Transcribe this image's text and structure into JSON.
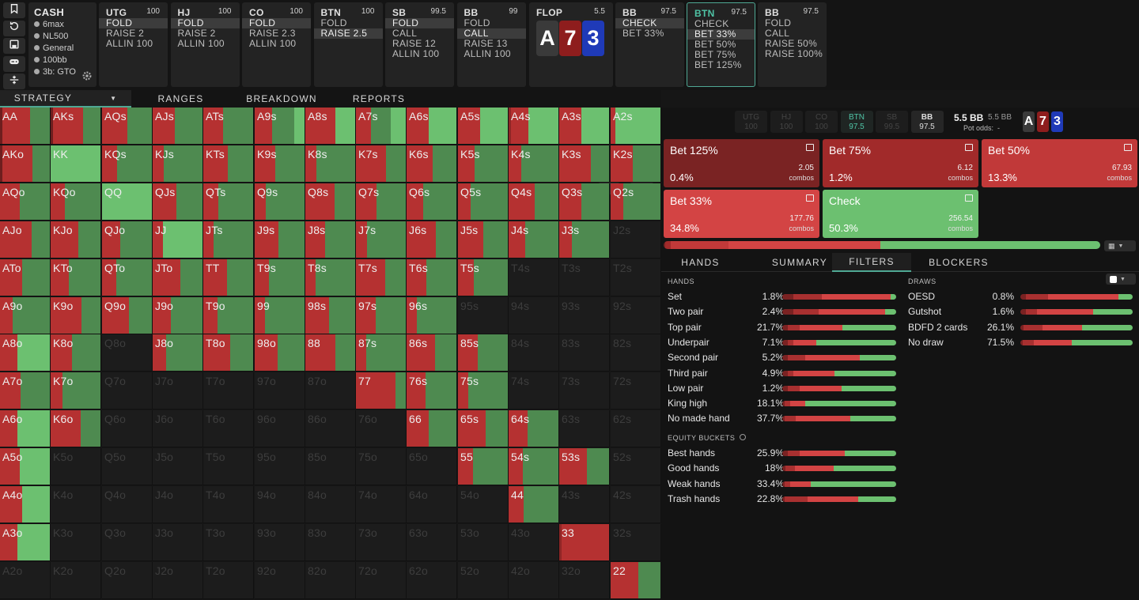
{
  "colors": {
    "raise_dark": "#7a2222",
    "raise": "#b53131",
    "bet": "#d34444",
    "check": "#6cc070",
    "check_dark": "#4e8a50",
    "empty": "#1c1c1c",
    "accent": "#4fc3a5"
  },
  "toolbar": {
    "icons": [
      "bookmark-icon",
      "history-icon",
      "save-icon",
      "gamepad-icon",
      "compress-icon"
    ]
  },
  "game": {
    "title": "CASH",
    "info": [
      "6max",
      "NL500",
      "General",
      "100bb",
      "3b: GTO"
    ]
  },
  "positions": [
    {
      "name": "UTG",
      "stack": "100",
      "actions": [
        "FOLD",
        "RAISE 2",
        "ALLIN 100"
      ],
      "selected": 0
    },
    {
      "name": "HJ",
      "stack": "100",
      "actions": [
        "FOLD",
        "RAISE 2",
        "ALLIN 100"
      ],
      "selected": 0
    },
    {
      "name": "CO",
      "stack": "100",
      "actions": [
        "FOLD",
        "RAISE 2.3",
        "ALLIN 100"
      ],
      "selected": 0
    },
    {
      "name": "BTN",
      "stack": "100",
      "actions": [
        "FOLD",
        "RAISE 2.5"
      ],
      "selected": 1
    },
    {
      "name": "SB",
      "stack": "99.5",
      "actions": [
        "FOLD",
        "CALL",
        "RAISE 12",
        "ALLIN 100"
      ],
      "selected": 0
    },
    {
      "name": "BB",
      "stack": "99",
      "actions": [
        "FOLD",
        "CALL",
        "RAISE 13",
        "ALLIN 100"
      ],
      "selected": 1
    }
  ],
  "flop": {
    "label": "FLOP",
    "pot": "5.5",
    "cards": [
      {
        "rank": "A",
        "color": "#3a3a3a"
      },
      {
        "rank": "7",
        "color": "#8e1d1d"
      },
      {
        "rank": "3",
        "color": "#1f3ab8"
      }
    ]
  },
  "postflop": [
    {
      "name": "BB",
      "stack": "97.5",
      "actions": [
        "CHECK",
        "BET 33%"
      ],
      "selected": 0,
      "active": false
    },
    {
      "name": "BTN",
      "stack": "97.5",
      "actions": [
        "CHECK",
        "BET 33%",
        "BET 50%",
        "BET 75%",
        "BET 125%"
      ],
      "selected": 1,
      "active": true
    },
    {
      "name": "BB",
      "stack": "97.5",
      "actions": [
        "FOLD",
        "CALL",
        "RAISE 50%",
        "RAISE 100%"
      ],
      "selected": -1,
      "active": false
    }
  ],
  "nav": {
    "tabs": [
      "STRATEGY",
      "RANGES",
      "BREAKDOWN",
      "REPORTS"
    ]
  },
  "grid": {
    "ranks": [
      "A",
      "K",
      "Q",
      "J",
      "T",
      "9",
      "8",
      "7",
      "6",
      "5",
      "4",
      "3",
      "2"
    ]
  },
  "right": {
    "seats": [
      {
        "name": "UTG",
        "stack": "100"
      },
      {
        "name": "HJ",
        "stack": "100"
      },
      {
        "name": "CO",
        "stack": "100"
      },
      {
        "name": "BTN",
        "stack": "97.5"
      },
      {
        "name": "SB",
        "stack": "99.5"
      },
      {
        "name": "BB",
        "stack": "97.5"
      }
    ],
    "pot": "5.5 BB",
    "pot_sub": "5.5 BB",
    "pot_odds_label": "Pot odds:",
    "pot_odds_value": "-",
    "board": [
      "A",
      "7",
      "3"
    ],
    "actions": [
      {
        "name": "Bet 125%",
        "pct": "0.4%",
        "combos": "2.05",
        "unit": "combos",
        "color": "#7a2323",
        "share": 0.4
      },
      {
        "name": "Bet 75%",
        "pct": "1.2%",
        "combos": "6.12",
        "unit": "combos",
        "color": "#a12a2a",
        "share": 1.2
      },
      {
        "name": "Bet 50%",
        "pct": "13.3%",
        "combos": "67.93",
        "unit": "combos",
        "color": "#c13939",
        "share": 13.3
      },
      {
        "name": "Bet 33%",
        "pct": "34.8%",
        "combos": "177.76",
        "unit": "combos",
        "color": "#d34444",
        "share": 34.8
      },
      {
        "name": "Check",
        "pct": "50.3%",
        "combos": "256.54",
        "unit": "combos",
        "color": "#6cc070",
        "share": 50.3
      }
    ],
    "subtabs": [
      "HANDS",
      "SUMMARY",
      "FILTERS",
      "BLOCKERS"
    ],
    "hands_title": "HANDS",
    "draws_title": "DRAWS",
    "equity_title": "EQUITY BUCKETS",
    "hands": [
      {
        "name": "Set",
        "value": "1.8%",
        "mix": [
          10,
          25,
          60,
          5
        ]
      },
      {
        "name": "Two pair",
        "value": "2.4%",
        "mix": [
          10,
          22,
          58,
          10
        ]
      },
      {
        "name": "Top pair",
        "value": "21.7%",
        "mix": [
          5,
          10,
          38,
          47
        ]
      },
      {
        "name": "Underpair",
        "value": "7.1%",
        "mix": [
          5,
          5,
          20,
          70
        ]
      },
      {
        "name": "Second pair",
        "value": "5.2%",
        "mix": [
          5,
          15,
          48,
          32
        ]
      },
      {
        "name": "Third pair",
        "value": "4.9%",
        "mix": [
          5,
          5,
          36,
          54
        ]
      },
      {
        "name": "Low pair",
        "value": "1.2%",
        "mix": [
          5,
          10,
          37,
          48
        ]
      },
      {
        "name": "King high",
        "value": "18.1%",
        "mix": [
          2,
          5,
          13,
          80
        ]
      },
      {
        "name": "No made hand",
        "value": "37.7%",
        "mix": [
          2,
          10,
          48,
          40
        ]
      }
    ],
    "draws": [
      {
        "name": "OESD",
        "value": "0.8%",
        "mix": [
          5,
          20,
          62,
          13
        ]
      },
      {
        "name": "Gutshot",
        "value": "1.6%",
        "mix": [
          5,
          10,
          50,
          35
        ]
      },
      {
        "name": "BDFD 2 cards",
        "value": "26.1%",
        "mix": [
          3,
          17,
          35,
          45
        ]
      },
      {
        "name": "No draw",
        "value": "71.5%",
        "mix": [
          2,
          10,
          34,
          54
        ]
      }
    ],
    "equity": [
      {
        "name": "Best hands",
        "value": "25.9%",
        "mix": [
          5,
          10,
          40,
          45
        ]
      },
      {
        "name": "Good hands",
        "value": "18%",
        "mix": [
          3,
          8,
          34,
          55
        ]
      },
      {
        "name": "Weak hands",
        "value": "33.4%",
        "mix": [
          2,
          5,
          18,
          75
        ]
      },
      {
        "name": "Trash hands",
        "value": "22.8%",
        "mix": [
          2,
          20,
          45,
          33
        ]
      }
    ]
  }
}
